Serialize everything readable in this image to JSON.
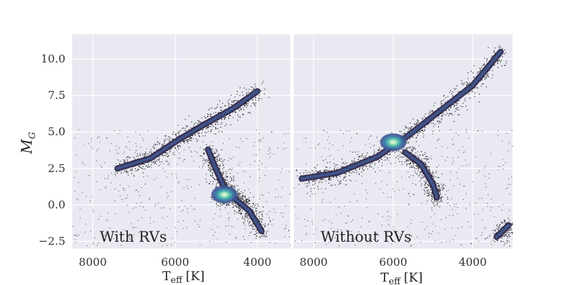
{
  "chart_data": {
    "type": "scatter",
    "ylabel": "M",
    "ylabel_subscript": "G",
    "y_inverted": true,
    "ylim": [
      11.7,
      -3.0
    ],
    "yticks": [
      -2.5,
      0.0,
      2.5,
      5.0,
      7.5,
      10.0
    ],
    "ytick_labels": [
      "−2.5",
      "0.0",
      "2.5",
      "5.0",
      "7.5",
      "10.0"
    ],
    "grid": true,
    "background": "#e9e9f2",
    "grid_color": "#ffffff",
    "point_color": "#1c1c1c",
    "density_colormap": [
      "#2b2244",
      "#3b3a73",
      "#3f5a96",
      "#3f84a8",
      "#4fb3b0",
      "#8ad8b2",
      "#d8f2d0"
    ],
    "panels": [
      {
        "label": "With RVs",
        "xlabel": "T",
        "xlabel_subscript": "eff",
        "xlabel_unit": "[K]",
        "x_inverted": true,
        "xlim": [
          8500,
          3200
        ],
        "xticks": [
          8000,
          6000,
          4000
        ],
        "xtick_labels": [
          "8000",
          "6000",
          "4000"
        ],
        "density_peak": {
          "teff": 4800,
          "mg": 0.7
        },
        "features": [
          {
            "name": "main_sequence",
            "points": [
              [
                7400,
                2.5
              ],
              [
                6600,
                3.2
              ],
              [
                5900,
                4.5
              ],
              [
                5300,
                5.5
              ],
              [
                4600,
                6.6
              ],
              [
                4000,
                7.8
              ]
            ]
          },
          {
            "name": "red_giant_branch",
            "points": [
              [
                5200,
                3.8
              ],
              [
                5000,
                2.4
              ],
              [
                4800,
                1.2
              ],
              [
                4500,
                0.3
              ],
              [
                4200,
                -0.4
              ],
              [
                3900,
                -1.8
              ]
            ]
          },
          {
            "name": "red_clump",
            "points": [
              [
                4850,
                0.6
              ],
              [
                4700,
                0.7
              ]
            ]
          }
        ]
      },
      {
        "label": "Without RVs",
        "xlabel": "T",
        "xlabel_subscript": "eff",
        "xlabel_unit": "[K]",
        "x_inverted": true,
        "xlim": [
          8500,
          3000
        ],
        "xticks": [
          8000,
          6000,
          4000
        ],
        "xtick_labels": [
          "8000",
          "6000",
          "4000"
        ],
        "density_peak": {
          "teff": 6000,
          "mg": 4.3
        },
        "features": [
          {
            "name": "main_sequence",
            "points": [
              [
                8300,
                1.8
              ],
              [
                7400,
                2.2
              ],
              [
                6400,
                3.3
              ],
              [
                5600,
                4.8
              ],
              [
                4800,
                6.5
              ],
              [
                4000,
                8.2
              ],
              [
                3300,
                10.5
              ]
            ]
          },
          {
            "name": "subgiant_branch",
            "points": [
              [
                5700,
                3.6
              ],
              [
                5300,
                2.8
              ],
              [
                5000,
                1.4
              ],
              [
                4900,
                0.5
              ]
            ]
          },
          {
            "name": "red_giant_tip",
            "points": [
              [
                3400,
                -2.2
              ],
              [
                3100,
                -1.4
              ]
            ]
          }
        ]
      }
    ]
  }
}
